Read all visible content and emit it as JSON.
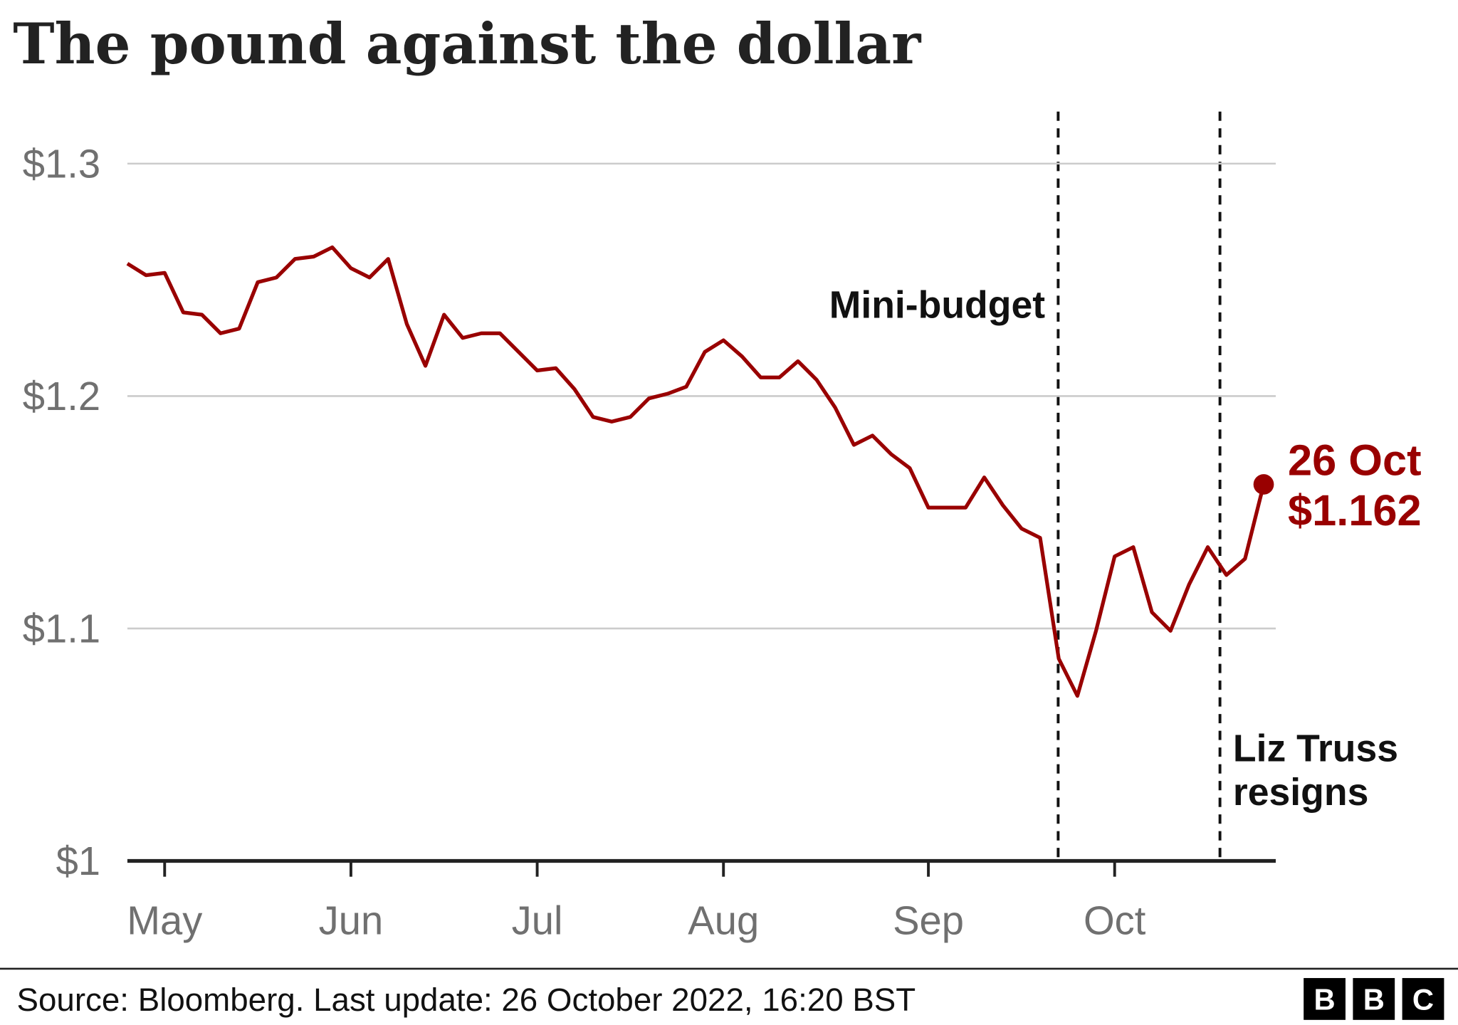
{
  "chart_data": {
    "type": "line",
    "title": "The pound against the dollar",
    "categories": [
      null,
      null,
      "May",
      null,
      null,
      null,
      null,
      null,
      null,
      null,
      null,
      null,
      "Jun",
      null,
      null,
      null,
      null,
      null,
      null,
      null,
      null,
      null,
      "Jul",
      null,
      null,
      null,
      null,
      null,
      null,
      null,
      null,
      null,
      "Aug",
      null,
      null,
      null,
      null,
      null,
      null,
      null,
      null,
      null,
      null,
      "Sep",
      null,
      null,
      null,
      null,
      null,
      null,
      null,
      null,
      null,
      "Oct",
      null,
      null,
      null,
      null,
      null,
      null,
      null,
      "26 Oct"
    ],
    "series": [
      {
        "color": "#990000",
        "values": [
          1.257,
          1.252,
          1.253,
          1.236,
          1.235,
          1.227,
          1.229,
          1.249,
          1.251,
          1.259,
          1.26,
          1.264,
          1.255,
          1.251,
          1.259,
          1.231,
          1.213,
          1.235,
          1.225,
          1.227,
          1.227,
          1.219,
          1.211,
          1.212,
          1.203,
          1.191,
          1.189,
          1.191,
          1.199,
          1.201,
          1.204,
          1.219,
          1.224,
          1.217,
          1.208,
          1.208,
          1.215,
          1.207,
          1.195,
          1.179,
          1.183,
          1.175,
          1.169,
          1.152,
          1.152,
          1.152,
          1.165,
          1.153,
          1.143,
          1.139,
          1.087,
          1.071,
          1.099,
          1.131,
          1.135,
          1.107,
          1.099,
          1.119,
          1.135,
          1.123,
          1.13,
          1.162
        ],
        "value_labels": [
          null,
          null,
          null,
          null,
          null,
          null,
          null,
          null,
          null,
          null,
          null,
          null,
          null,
          null,
          null,
          null,
          null,
          null,
          null,
          null,
          null,
          null,
          null,
          null,
          null,
          null,
          null,
          null,
          null,
          null,
          null,
          null,
          null,
          null,
          null,
          null,
          null,
          null,
          null,
          null,
          null,
          null,
          null,
          null,
          null,
          null,
          null,
          null,
          null,
          null,
          null,
          null,
          null,
          null,
          null,
          null,
          null,
          null,
          null,
          null,
          null,
          "$1.162"
        ]
      }
    ],
    "ylim": [
      1,
      1.32
    ],
    "yticks": [
      {
        "value": 1,
        "label": "$1"
      },
      {
        "value": 1.1,
        "label": "$1.1"
      },
      {
        "value": 1.2,
        "label": "$1.2"
      },
      {
        "value": 1.3,
        "label": "$1.3"
      }
    ],
    "grid": true,
    "annotations": [
      {
        "label": "Mini-budget"
      },
      {
        "label": [
          "Liz Truss",
          "resigns"
        ]
      }
    ],
    "source": "Source: Bloomberg. Last update: 26 October 2022, 16:20 BST",
    "logo": [
      "B",
      "B",
      "C"
    ]
  }
}
